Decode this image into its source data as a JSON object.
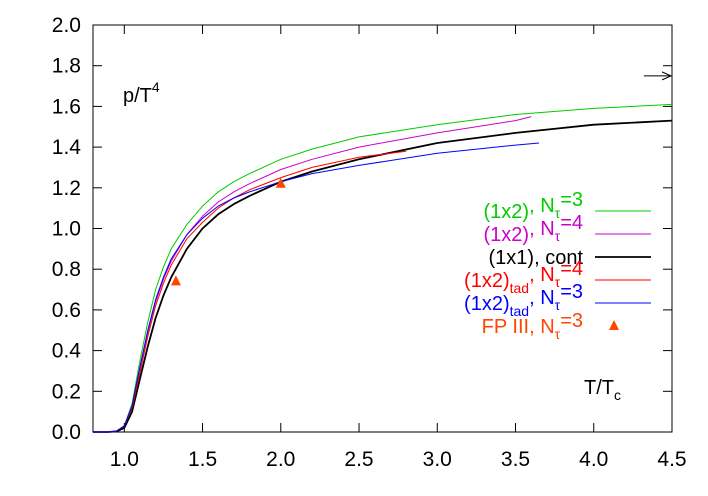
{
  "chart_data": {
    "type": "line",
    "title": "",
    "ylabel": "p/T",
    "ylabel_exp": "4",
    "xlabel": "T/T",
    "xlabel_sub": "c",
    "xlim": [
      0.8,
      4.5
    ],
    "ylim": [
      0.0,
      2.0
    ],
    "x_ticks": [
      "1.0",
      "1.5",
      "2.0",
      "2.5",
      "3.0",
      "3.5",
      "4.0",
      "4.5"
    ],
    "y_ticks": [
      "0.0",
      "0.2",
      "0.4",
      "0.6",
      "0.8",
      "1.0",
      "1.2",
      "1.4",
      "1.6",
      "1.8",
      "2.0"
    ],
    "grid": false,
    "legend_position": "right",
    "arrow_annotation": {
      "x_from": 4.32,
      "x_to": 4.5,
      "y": 1.75
    },
    "series": [
      {
        "name": "(1x2), N=3",
        "legend": {
          "pre": "(1x2)",
          "tad": "",
          "mid": ", N",
          "tau": "τ",
          "post": "=3"
        },
        "color": "#00cc00",
        "x": [
          0.8,
          0.9,
          0.95,
          1.0,
          1.05,
          1.1,
          1.15,
          1.2,
          1.25,
          1.3,
          1.4,
          1.5,
          1.6,
          1.7,
          1.8,
          2.0,
          2.2,
          2.5,
          3.0,
          3.5,
          4.0,
          4.5
        ],
        "y": [
          0.0,
          0.0,
          0.005,
          0.03,
          0.14,
          0.35,
          0.54,
          0.7,
          0.81,
          0.9,
          1.02,
          1.11,
          1.18,
          1.23,
          1.27,
          1.34,
          1.39,
          1.45,
          1.51,
          1.56,
          1.59,
          1.61
        ]
      },
      {
        "name": "(1x2), N=4",
        "legend": {
          "pre": "(1x2)",
          "tad": "",
          "mid": ", N",
          "tau": "τ",
          "post": "=4"
        },
        "color": "#cc00cc",
        "x": [
          0.8,
          0.9,
          0.95,
          1.0,
          1.05,
          1.1,
          1.15,
          1.2,
          1.25,
          1.3,
          1.4,
          1.5,
          1.6,
          1.7,
          1.8,
          2.0,
          2.2,
          2.5,
          3.0,
          3.5,
          3.6
        ],
        "y": [
          0.0,
          0.0,
          0.005,
          0.03,
          0.12,
          0.31,
          0.49,
          0.64,
          0.75,
          0.84,
          0.97,
          1.06,
          1.13,
          1.18,
          1.22,
          1.29,
          1.34,
          1.4,
          1.47,
          1.53,
          1.55
        ]
      },
      {
        "name": "(1x1), cont",
        "legend": {
          "pre": "(1x1), cont",
          "tad": "",
          "mid": "",
          "tau": "",
          "post": ""
        },
        "color": "#000000",
        "x": [
          0.8,
          0.9,
          0.95,
          1.0,
          1.05,
          1.1,
          1.15,
          1.2,
          1.25,
          1.3,
          1.4,
          1.5,
          1.6,
          1.7,
          1.8,
          2.0,
          2.2,
          2.5,
          3.0,
          3.5,
          4.0,
          4.5
        ],
        "y": [
          0.0,
          0.0,
          0.003,
          0.02,
          0.1,
          0.26,
          0.42,
          0.56,
          0.67,
          0.76,
          0.9,
          1.0,
          1.07,
          1.12,
          1.16,
          1.23,
          1.28,
          1.34,
          1.42,
          1.47,
          1.51,
          1.53
        ]
      },
      {
        "name": "(1x2)tad, N=4",
        "legend": {
          "pre": "(1x2)",
          "tad": "tad",
          "mid": ", N",
          "tau": "τ",
          "post": "=4"
        },
        "color": "#ff0000",
        "x": [
          0.8,
          0.9,
          0.95,
          1.0,
          1.05,
          1.1,
          1.15,
          1.2,
          1.25,
          1.3,
          1.4,
          1.5,
          1.6,
          1.7,
          1.8,
          2.0,
          2.2,
          2.5,
          2.8
        ],
        "y": [
          0.0,
          0.0,
          0.005,
          0.03,
          0.12,
          0.29,
          0.47,
          0.62,
          0.73,
          0.82,
          0.95,
          1.03,
          1.1,
          1.15,
          1.19,
          1.25,
          1.3,
          1.35,
          1.38
        ]
      },
      {
        "name": "(1x2)tad, N=3",
        "legend": {
          "pre": "(1x2)",
          "tad": "tad",
          "mid": ", N",
          "tau": "τ",
          "post": "=3"
        },
        "color": "#0000ff",
        "x": [
          0.8,
          0.9,
          0.95,
          1.0,
          1.05,
          1.1,
          1.15,
          1.2,
          1.25,
          1.3,
          1.4,
          1.5,
          1.6,
          1.7,
          1.8,
          2.0,
          2.2,
          2.5,
          3.0,
          3.5,
          3.65
        ],
        "y": [
          0.0,
          0.0,
          0.005,
          0.03,
          0.13,
          0.32,
          0.5,
          0.65,
          0.76,
          0.85,
          0.97,
          1.05,
          1.11,
          1.15,
          1.18,
          1.23,
          1.27,
          1.31,
          1.37,
          1.41,
          1.42
        ]
      }
    ],
    "markers": {
      "name": "FP III, N=3",
      "legend": {
        "pre": "FP  III, N",
        "tad": "",
        "mid": "",
        "tau": "τ",
        "post": "=3"
      },
      "color": "#ff4500",
      "x": [
        1.33,
        2.0
      ],
      "y": [
        0.74,
        1.22
      ]
    }
  }
}
